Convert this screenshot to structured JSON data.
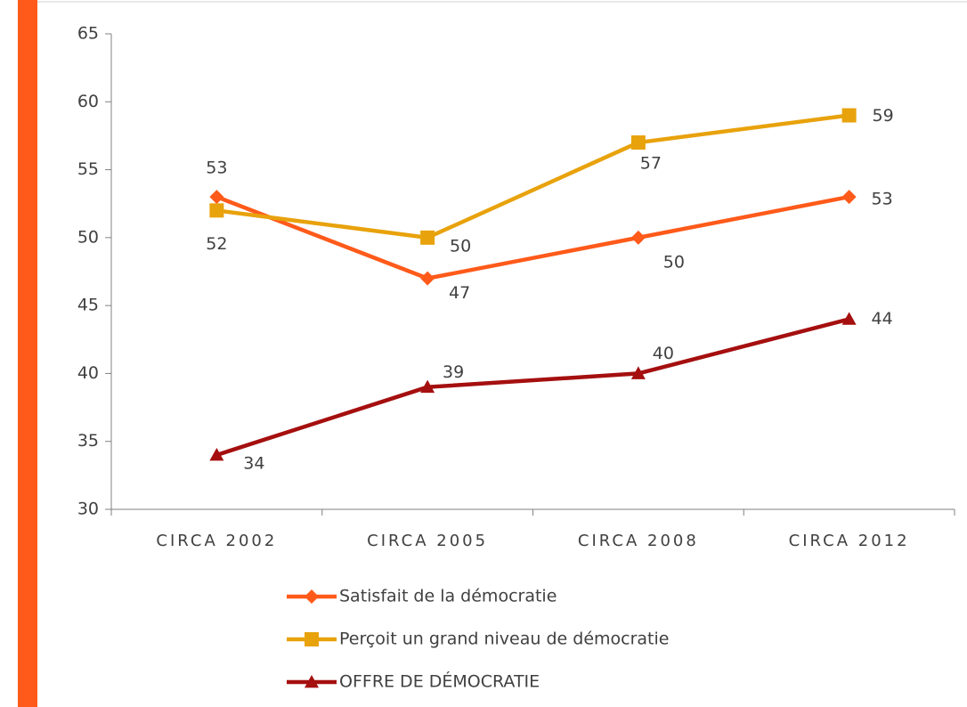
{
  "chart_data": {
    "type": "line",
    "categories": [
      "CIRCA 2002",
      "CIRCA 2005",
      "CIRCA 2008",
      "CIRCA 2012"
    ],
    "series": [
      {
        "name": "Satisfait de la démocratie",
        "color": "#ff5a1a",
        "marker": "diamond",
        "values": [
          53,
          47,
          50,
          53
        ]
      },
      {
        "name": "Perçoit un grand niveau de démocratie",
        "color": "#e8a20c",
        "marker": "square",
        "values": [
          52,
          50,
          57,
          59
        ]
      },
      {
        "name": "OFFRE DE DÉMOCRATIE",
        "color": "#a50f0f",
        "marker": "triangle",
        "values": [
          34,
          39,
          40,
          44
        ]
      }
    ],
    "ylim": [
      30,
      65
    ],
    "yticks": [
      30,
      35,
      40,
      45,
      50,
      55,
      60,
      65
    ],
    "grid": false,
    "legend": "bottom"
  }
}
